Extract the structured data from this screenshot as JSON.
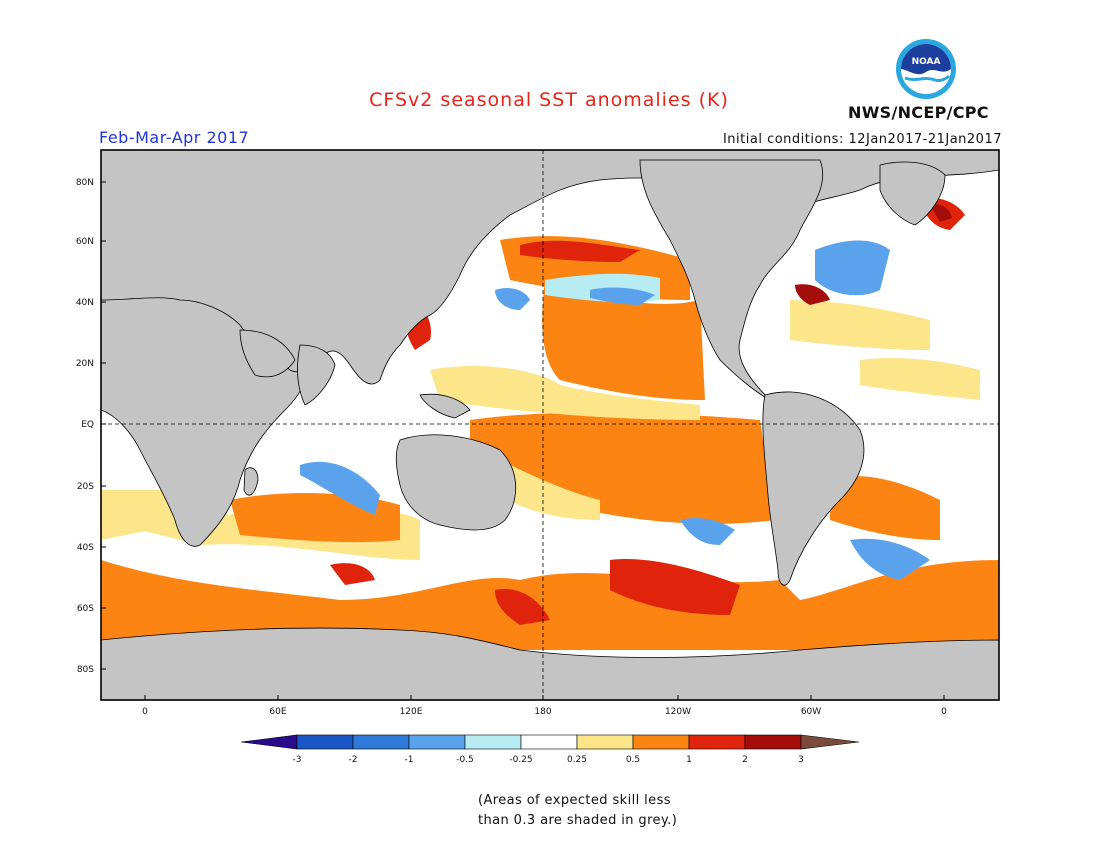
{
  "title": "CFSv2 seasonal SST anomalies (K)",
  "season": "Feb-Mar-Apr 2017",
  "initial_conditions": "Initial conditions: 12Jan2017-21Jan2017",
  "agency": "NWS/NCEP/CPC",
  "logo_text": "NOAA",
  "lat_labels": [
    "80N",
    "60N",
    "40N",
    "20N",
    "EQ",
    "20S",
    "40S",
    "60S",
    "80S"
  ],
  "lon_labels": [
    "0",
    "60E",
    "120E",
    "180",
    "120W",
    "60W",
    "0"
  ],
  "colorbar": {
    "ticks": [
      "-3",
      "-2",
      "-1",
      "-0.5",
      "-0.25",
      "0.25",
      "0.5",
      "1",
      "2",
      "3"
    ],
    "colors": [
      "#2a0b8c",
      "#1b56c7",
      "#2f7ad9",
      "#5aa3ec",
      "#b8ecf3",
      "#ffffff",
      "#fde58a",
      "#fb8412",
      "#e0240c",
      "#a40d0a",
      "#7a4a3a"
    ]
  },
  "note": [
    "(Areas of expected skill less",
    "than 0.3 are shaded in grey.)"
  ],
  "colors": {
    "land": "#c4c4c4",
    "skill_grey": "#c4c4c4",
    "title": "#e8231a",
    "season": "#2233dd"
  }
}
